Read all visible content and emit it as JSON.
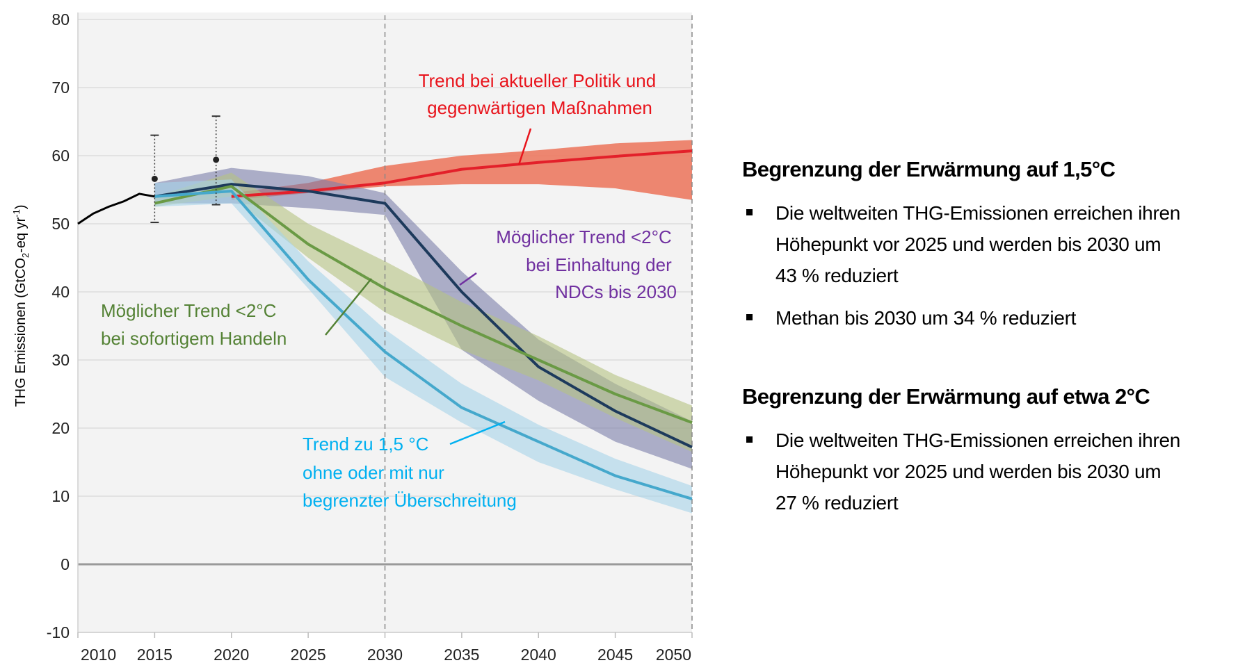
{
  "chart_data": {
    "type": "area",
    "ylabel": "THG Emissionen (GtCO2-eq yr-1)",
    "ylabel_parts": {
      "pre": "THG Emissionen (GtCO",
      "sub": "2",
      "mid": "-eq yr",
      "sup": "-1",
      "post": ")"
    },
    "xlim": [
      2010,
      2050
    ],
    "ylim": [
      -10,
      80
    ],
    "x_ticks": [
      "2010",
      "2015",
      "2020",
      "2025",
      "2030",
      "2035",
      "2040",
      "2045",
      "2050"
    ],
    "y_ticks": [
      "80",
      "70",
      "60",
      "50",
      "40",
      "30",
      "20",
      "10",
      "0",
      "-10"
    ],
    "grid": "horizontal",
    "vertical_dashed_lines": [
      2030,
      2050
    ],
    "historical": {
      "color": "#000000",
      "x": [
        2010,
        2011,
        2012,
        2013,
        2014,
        2015
      ],
      "y": [
        50.0,
        51.5,
        52.5,
        53.3,
        54.4,
        54.0
      ]
    },
    "error_bars": [
      {
        "x": 2015,
        "y": 56.6,
        "low": 50.2,
        "high": 63.0
      },
      {
        "x": 2019,
        "y": 59.4,
        "low": 52.8,
        "high": 65.8
      }
    ],
    "series": [
      {
        "name": "Trend bei aktueller Politik und gegenwärtigen Maßnahmen",
        "line_color": "#e3202a",
        "band_color": "#ec7a62",
        "label_color": "#e8141c",
        "x": [
          2020,
          2025,
          2030,
          2035,
          2040,
          2045,
          2050
        ],
        "y": [
          54.0,
          54.8,
          56.0,
          58.0,
          59.0,
          59.9,
          60.7
        ],
        "upper": [
          54.5,
          56.0,
          58.5,
          60.0,
          60.8,
          61.8,
          62.3
        ],
        "lower": [
          53.5,
          54.5,
          55.5,
          55.8,
          55.8,
          55.2,
          53.5
        ]
      },
      {
        "name": "Möglicher Trend <2°C bei Einhaltung der NDCs bis 2030",
        "line_color": "#1d3a5c",
        "band_color": "#7b7eaa",
        "label_color": "#7030a0",
        "x": [
          2015,
          2020,
          2025,
          2030,
          2035,
          2040,
          2045,
          2050
        ],
        "y": [
          54.0,
          55.8,
          54.8,
          53.0,
          40.0,
          29.0,
          22.5,
          17.2
        ],
        "upper": [
          56.0,
          58.2,
          57.0,
          54.5,
          43.0,
          33.0,
          26.5,
          21.0
        ],
        "lower": [
          53.0,
          53.0,
          52.3,
          51.3,
          31.5,
          24.0,
          18.0,
          14.0
        ]
      },
      {
        "name": "Möglicher Trend <2°C bei sofortigem Handeln",
        "line_color": "#6a9a45",
        "band_color": "#b5c382",
        "label_color": "#548235",
        "x": [
          2015,
          2020,
          2025,
          2030,
          2035,
          2040,
          2045,
          2050
        ],
        "y": [
          53.0,
          55.5,
          47.0,
          40.5,
          35.0,
          30.0,
          25.0,
          20.8
        ],
        "upper": [
          54.0,
          57.5,
          50.0,
          44.5,
          38.5,
          33.5,
          27.8,
          23.3
        ],
        "lower": [
          52.5,
          54.0,
          45.0,
          37.0,
          31.5,
          27.0,
          21.5,
          16.5
        ]
      },
      {
        "name": "Trend zu 1,5 °C ohne oder mit nur begrenzter Überschreitung",
        "line_color": "#45a8cc",
        "band_color": "#a6d3e9",
        "label_color": "#00b0f0",
        "x": [
          2015,
          2020,
          2025,
          2030,
          2035,
          2040,
          2045,
          2050
        ],
        "y": [
          54.0,
          54.8,
          41.8,
          31.2,
          23.0,
          18.0,
          13.0,
          9.6
        ],
        "upper": [
          56.0,
          56.5,
          44.5,
          34.5,
          26.5,
          20.5,
          15.5,
          11.5
        ],
        "lower": [
          52.5,
          53.0,
          40.5,
          27.5,
          20.8,
          15.0,
          11.0,
          7.5
        ]
      }
    ],
    "annotations": {
      "red": [
        "Trend bei aktueller Politik und",
        "gegenwärtigen Maßnahmen"
      ],
      "purple": [
        "Möglicher Trend <2°C",
        "bei Einhaltung der",
        "NDCs bis 2030"
      ],
      "green": [
        "Möglicher Trend <2°C",
        "bei sofortigem Handeln"
      ],
      "blue": [
        "Trend zu 1,5 °C",
        "ohne oder mit nur",
        "begrenzter Überschreitung"
      ]
    }
  },
  "side": {
    "section1": {
      "heading": "Begrenzung der Erwärmung auf 1,5°C",
      "bullets": [
        "Die weltweiten THG-Emissionen erreichen ihren Höhepunkt vor 2025 und werden bis 2030 um 43 % reduziert",
        "Methan bis 2030 um 34 % reduziert"
      ]
    },
    "section2": {
      "heading": "Begrenzung der Erwärmung auf etwa 2°C",
      "bullets": [
        "Die weltweiten THG-Emissionen erreichen ihren Höhepunkt vor 2025 und werden bis 2030 um 27 % reduziert"
      ]
    }
  }
}
